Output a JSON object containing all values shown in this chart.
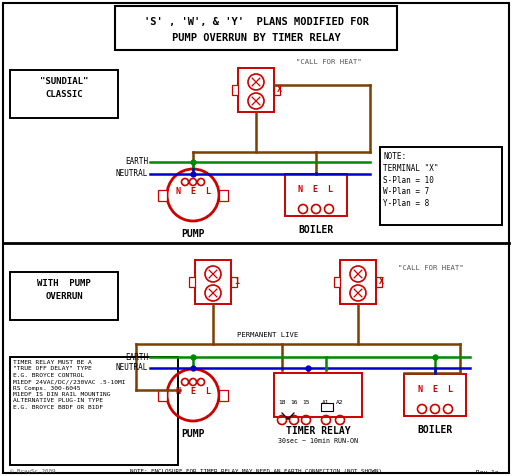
{
  "title_line1": "'S' , 'W', & 'Y'  PLANS MODIFIED FOR",
  "title_line2": "PUMP OVERRUN BY TIMER RELAY",
  "bg_color": "#ffffff",
  "black": "#000000",
  "red": "#cc0000",
  "green": "#008800",
  "blue": "#0000cc",
  "brown": "#7B3F00",
  "gray": "#555555",
  "sundial_label": "\"SUNDIAL\"\nCLASSIC",
  "with_pump_label": "WITH  PUMP\nOVERRUN",
  "note_text": "NOTE:\nTERMINAL \"X\"\nS-Plan = 10\nW-Plan = 7\nY-Plan = 8",
  "timer_note": "TIMER RELAY MUST BE A\n\"TRUE OFF DELAY\" TYPE\nE.G. BROYCE CONTROL\nM1EDF 24VAC/DC//230VAC .5-10MI\nRS Comps. 300-6045\nM1EDF IS DIN RAIL MOUNTING\nALTERNATIVE PLUG-IN TYPE\nE.G. BROYCE B8DF OR B1DF",
  "bottom_note": "NOTE: ENCLOSURE FOR TIMER RELAY MAY NEED AN EARTH CONNECTION (NOT SHOWN)",
  "rev_note": "Rev 1a",
  "copyright": "© BraySc 2009"
}
